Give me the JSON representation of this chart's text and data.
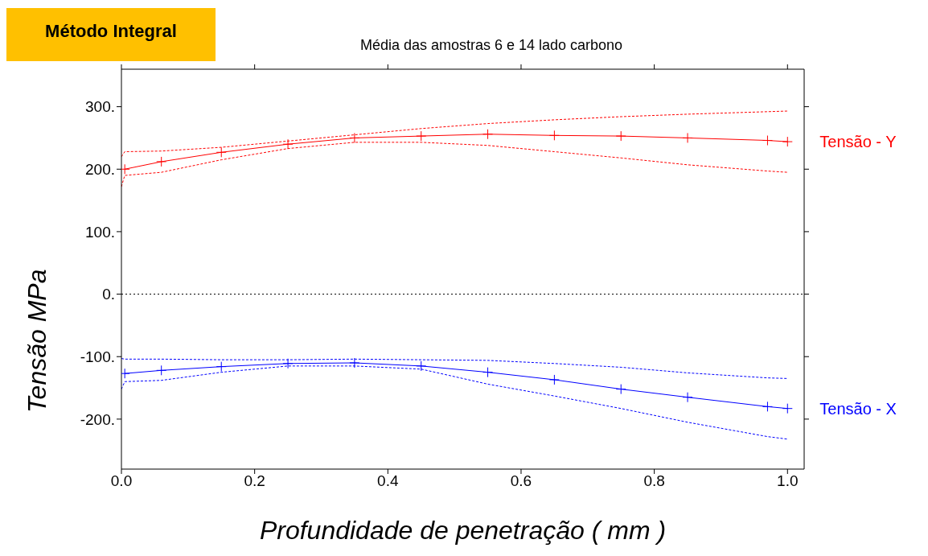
{
  "chart_data": {
    "type": "line",
    "title": "Média das amostras 6 e 14 lado carbono",
    "xlabel": "Profundidade de penetração ( mm )",
    "ylabel": "Tensão  MPa",
    "annotations": [
      "Método Integral"
    ],
    "x": [
      0,
      0.005,
      0.06,
      0.15,
      0.25,
      0.35,
      0.45,
      0.55,
      0.65,
      0.75,
      0.85,
      0.97,
      1.0
    ],
    "series": [
      {
        "name": "Tensão - Y",
        "color": "#ff0000",
        "values": [
          null,
          200,
          212,
          227,
          240,
          250,
          253,
          256,
          254,
          253,
          250,
          246,
          244
        ]
      },
      {
        "color": "#ff0000",
        "line_style": "dashed",
        "marker": "none",
        "values": [
          220,
          228,
          229,
          235,
          245,
          255,
          265,
          273,
          279,
          284,
          288,
          292,
          293
        ]
      },
      {
        "color": "#ff0000",
        "line_style": "dashed",
        "marker": "none",
        "values": [
          172,
          190,
          195,
          215,
          233,
          243,
          243,
          238,
          228,
          218,
          207,
          197,
          195
        ]
      },
      {
        "name": "Tensão - X",
        "color": "#0000ff",
        "values": [
          null,
          -127,
          -122,
          -116,
          -111,
          -110,
          -115,
          -125,
          -137,
          -152,
          -165,
          -180,
          -183
        ]
      },
      {
        "color": "#0000ff",
        "line_style": "dashed",
        "marker": "none",
        "values": [
          -103,
          -104,
          -104,
          -105,
          -105,
          -104,
          -105,
          -106,
          -111,
          -117,
          -126,
          -134,
          -135
        ]
      },
      {
        "color": "#0000ff",
        "line_style": "dashed",
        "marker": "none",
        "values": [
          -152,
          -140,
          -138,
          -125,
          -115,
          -115,
          -120,
          -144,
          -163,
          -183,
          -205,
          -228,
          -232
        ]
      }
    ],
    "xlim": [
      0,
      1.025
    ],
    "xticks": [
      {
        "value": 0,
        "label": "0.0"
      },
      {
        "value": 0.2,
        "label": "0.2"
      },
      {
        "value": 0.4,
        "label": "0.4"
      },
      {
        "value": 0.6,
        "label": "0.6"
      },
      {
        "value": 0.8,
        "label": "0.8"
      },
      {
        "value": 1,
        "label": "1.0"
      }
    ],
    "ylim": [
      -280,
      360
    ],
    "yticks": [
      {
        "value": -200,
        "label": "-200."
      },
      {
        "value": -100,
        "label": "-100."
      },
      {
        "value": 0,
        "label": "0."
      },
      {
        "value": 100,
        "label": "100."
      },
      {
        "value": 200,
        "label": "200."
      },
      {
        "value": 300,
        "label": "300."
      }
    ],
    "ref_lines": [
      {
        "axis": "y",
        "value": 0,
        "color": "#000000",
        "line_style": "dotted"
      }
    ],
    "marker": "cross",
    "line_style": "solid",
    "grid": false,
    "legend": false
  }
}
